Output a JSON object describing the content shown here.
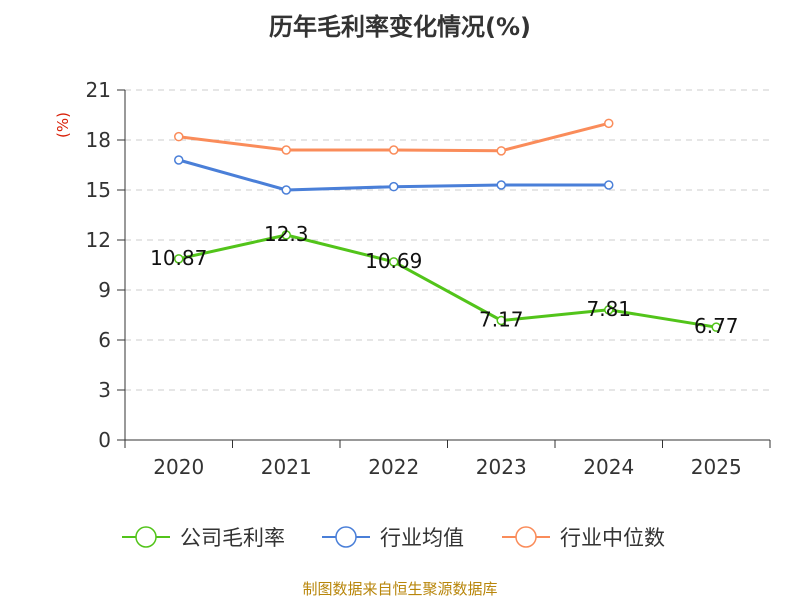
{
  "chart_data": {
    "type": "line",
    "title": "历年毛利率变化情况(%)",
    "ylabel": "(%)",
    "xlabel": "",
    "categories": [
      "2020",
      "2021",
      "2022",
      "2023",
      "2024",
      "2025"
    ],
    "ylim": [
      0,
      21
    ],
    "yticks": [
      0,
      3,
      6,
      9,
      12,
      15,
      18,
      21
    ],
    "grid": true,
    "legend_position": "bottom",
    "series": [
      {
        "name": "公司毛利率",
        "color": "#52c41a",
        "show_labels": true,
        "values": [
          10.87,
          12.3,
          10.69,
          7.17,
          7.81,
          6.77
        ],
        "labels": [
          "10.87",
          "12.3",
          "10.69",
          "7.17",
          "7.81",
          "6.77"
        ]
      },
      {
        "name": "行业均值",
        "color": "#4a7fd8",
        "show_labels": false,
        "values": [
          16.8,
          15.0,
          15.2,
          15.3,
          15.3,
          null
        ]
      },
      {
        "name": "行业中位数",
        "color": "#fa8c5a",
        "show_labels": false,
        "values": [
          18.2,
          17.4,
          17.4,
          17.35,
          19.0,
          null
        ]
      }
    ]
  },
  "source": "制图数据来自恒生聚源数据库"
}
